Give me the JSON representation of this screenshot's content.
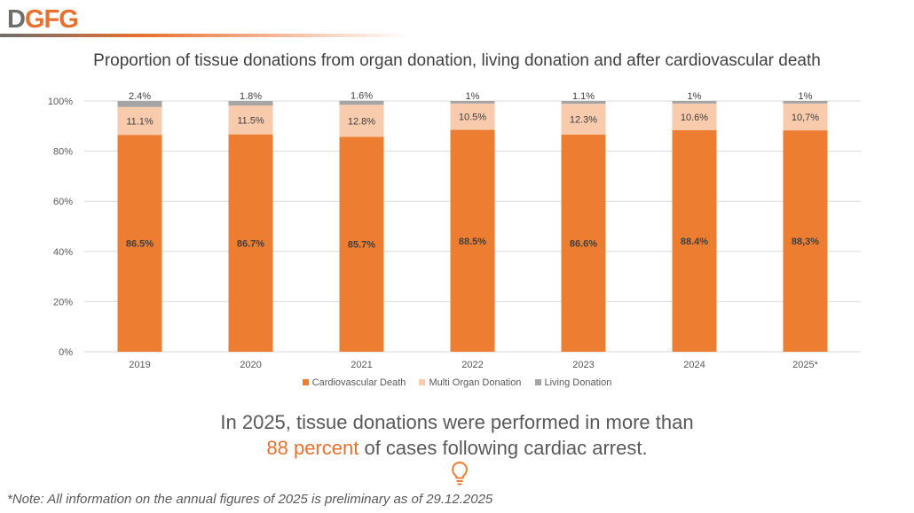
{
  "logo": {
    "text": "DGFG",
    "part1": "D",
    "part2": "GFG"
  },
  "colors": {
    "accent": "#ED7D31",
    "multi": "#F8CBAD",
    "living": "#A5A5A5",
    "grey": "#6e6e6b"
  },
  "chart_data": {
    "type": "bar",
    "stacked": true,
    "title": "Proportion of tissue donations from organ donation, living donation and after cardiovascular death",
    "categories": [
      "2019",
      "2020",
      "2021",
      "2022",
      "2023",
      "2024",
      "2025*"
    ],
    "series": [
      {
        "name": "Cardiovascular Death",
        "color": "#ED7D31",
        "values": [
          86.5,
          86.7,
          85.7,
          88.5,
          86.6,
          88.4,
          88.3
        ],
        "labels": [
          "86.5%",
          "86.7%",
          "85.7%",
          "88.5%",
          "86.6%",
          "88.4%",
          "88,3%"
        ]
      },
      {
        "name": "Multi Organ Donation",
        "color": "#F8CBAD",
        "values": [
          11.1,
          11.5,
          12.8,
          10.5,
          12.3,
          10.6,
          10.7
        ],
        "labels": [
          "11.1%",
          "11.5%",
          "12.8%",
          "10.5%",
          "12.3%",
          "10.6%",
          "10,7%"
        ]
      },
      {
        "name": "Living Donation",
        "color": "#A5A5A5",
        "values": [
          2.4,
          1.8,
          1.6,
          1,
          1.1,
          1,
          1
        ],
        "labels": [
          "2.4%",
          "1.8%",
          "1.6%",
          "1%",
          "1.1%",
          "1%",
          "1%"
        ]
      }
    ],
    "yticks": [
      "0%",
      "20%",
      "40%",
      "60%",
      "80%",
      "100%"
    ],
    "ylim": [
      0,
      100
    ],
    "grid": true,
    "legend": "bottom"
  },
  "message": {
    "line1": "In 2025, tissue donations were performed in more than",
    "highlight": "88 percent",
    "line2_rest": " of cases following cardiac arrest."
  },
  "icon": "lightbulb-icon",
  "note": "*Note: All information on the annual figures of 2025 is preliminary as of 29.12.2025"
}
